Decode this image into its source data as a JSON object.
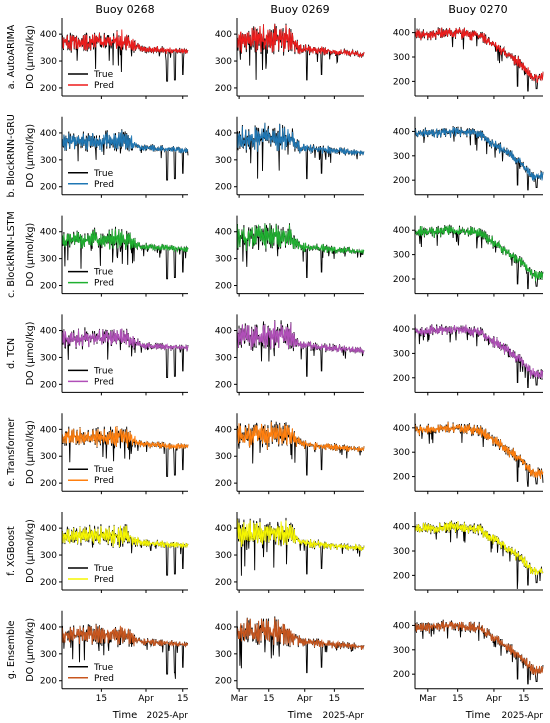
{
  "figure": {
    "columns": [
      {
        "title": "Buoy 0268"
      },
      {
        "title": "Buoy 0269"
      },
      {
        "title": "Buoy 0270"
      }
    ],
    "rows": [
      {
        "label": "a. AutoARIMA",
        "model": "AutoARIMA",
        "color": "#ee1c1c"
      },
      {
        "label": "b. BlockRNN-GRU",
        "model": "BlockRNN-GRU",
        "color": "#1f77b4"
      },
      {
        "label": "c. BlockRNN-LSTM",
        "model": "BlockRNN-LSTM",
        "color": "#1fb030"
      },
      {
        "label": "d. TCN",
        "model": "TCN",
        "color": "#b04fb8"
      },
      {
        "label": "e. Transformer",
        "model": "Transformer",
        "color": "#ff7f0e"
      },
      {
        "label": "f. XGBoost",
        "model": "XGBoost",
        "color": "#f5f500"
      },
      {
        "label": "g. Ensemble",
        "model": "Ensemble",
        "color": "#c8561e"
      }
    ],
    "ylabel": "DO (μmol/kg)",
    "xlabel": "Time",
    "x_offset_label": "2025-Apr",
    "legend": {
      "true_label": "True",
      "pred_label": "Pred",
      "true_color": "#000000",
      "placement": "lower-left"
    }
  },
  "chart_data": {
    "type": "line",
    "grid": false,
    "shared_ylabel": "DO (μmol/kg)",
    "shared_xlabel": "Time",
    "yticks": {
      "col_0": [
        200,
        300,
        400
      ],
      "col_1": [
        200,
        300,
        400
      ],
      "col_2": [
        200,
        300,
        400
      ]
    },
    "ylim": {
      "col_0": [
        170,
        460
      ],
      "col_1": [
        170,
        460
      ],
      "col_2": [
        140,
        460
      ]
    },
    "xtick_labels": {
      "col_0": [
        "15",
        "Apr",
        "15"
      ],
      "col_1": [
        "Mar",
        "15",
        "Apr",
        "15"
      ],
      "col_2": [
        "Mar",
        "15",
        "Apr",
        "15"
      ]
    },
    "xtick_positions_days": {
      "col_0": [
        15,
        32,
        46
      ],
      "col_1": [
        1,
        15,
        32,
        46
      ],
      "col_2": [
        1,
        15,
        32,
        46
      ]
    },
    "xlim_days": {
      "col_0": [
        0,
        48
      ],
      "col_1": [
        0,
        60
      ],
      "col_2": [
        -5,
        55
      ]
    },
    "x_unit": "days from 2025-Mar-01 (label 'Mar' = 2025-03-01, 'Apr' = 2025-04-01)",
    "series_profile": {
      "col_0": {
        "true_mean": [
          [
            0,
            370
          ],
          [
            24,
            372
          ],
          [
            30,
            345
          ],
          [
            48,
            335
          ]
        ],
        "amplitude": [
          [
            0,
            35
          ],
          [
            24,
            45
          ],
          [
            30,
            15
          ],
          [
            48,
            12
          ]
        ],
        "spikes_low": [
          [
            40,
            225
          ],
          [
            43,
            230
          ],
          [
            46,
            250
          ]
        ]
      },
      "col_1": {
        "true_mean": [
          [
            0,
            380
          ],
          [
            25,
            380
          ],
          [
            30,
            345
          ],
          [
            60,
            325
          ]
        ],
        "amplitude": [
          [
            0,
            55
          ],
          [
            25,
            55
          ],
          [
            30,
            20
          ],
          [
            60,
            12
          ]
        ],
        "spikes_low": [
          [
            33,
            230
          ],
          [
            40,
            250
          ]
        ]
      },
      "col_2": {
        "true_mean": [
          [
            -5,
            390
          ],
          [
            5,
            395
          ],
          [
            12,
            400
          ],
          [
            25,
            390
          ],
          [
            35,
            330
          ],
          [
            45,
            270
          ],
          [
            50,
            215
          ],
          [
            55,
            215
          ]
        ],
        "amplitude": [
          [
            -5,
            25
          ],
          [
            55,
            25
          ]
        ],
        "spikes_low": [
          [
            43,
            180
          ],
          [
            48,
            160
          ],
          [
            52,
            170
          ]
        ]
      }
    }
  }
}
